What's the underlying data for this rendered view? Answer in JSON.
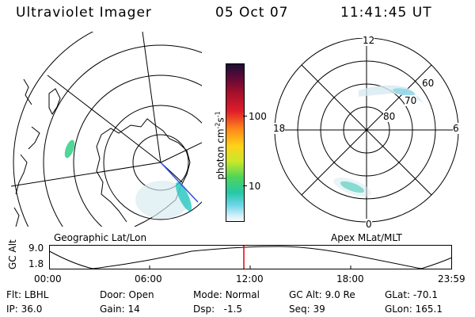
{
  "header": {
    "title": "Ultraviolet Imager",
    "date": "05 Oct 07",
    "time": "11:41:45 UT"
  },
  "colorbar": {
    "label": "photon cm",
    "label_exp1": "-2",
    "label_s": "s",
    "label_exp2": "-1",
    "tick_100": "100",
    "tick_10": "10"
  },
  "geo_map": {
    "caption": "Geographic Lat/Lon"
  },
  "apex_map": {
    "caption": "Apex MLat/MLT",
    "mlt_labels": {
      "top": "12",
      "left": "18",
      "right": "6",
      "bottom": "0"
    },
    "mlat_labels": [
      "60",
      "70",
      "80"
    ]
  },
  "alt_plot": {
    "ylabel": "GC Alt",
    "y_ticks": [
      "9.0",
      "1.8"
    ],
    "x_ticks": [
      "00:00",
      "06:00",
      "12:00",
      "18:00",
      "23:59"
    ],
    "marker_color": "#e00000"
  },
  "status": {
    "flt_label": "Flt:",
    "flt_value": "LBHL",
    "ip_label": "IP:",
    "ip_value": "36.0",
    "door_label": "Door:",
    "door_value": "Open",
    "gain_label": "Gain:",
    "gain_value": "14",
    "mode_label": "Mode:",
    "mode_value": "Normal",
    "dsp_label": "Dsp:",
    "dsp_value": "-1.5",
    "gcalt_label": "GC Alt:",
    "gcalt_value": "9.0 Re",
    "seq_label": "Seq:",
    "seq_value": "39",
    "glat_label": "GLat:",
    "glat_value": "-70.1",
    "glon_label": "GLon:",
    "glon_value": "165.1"
  }
}
